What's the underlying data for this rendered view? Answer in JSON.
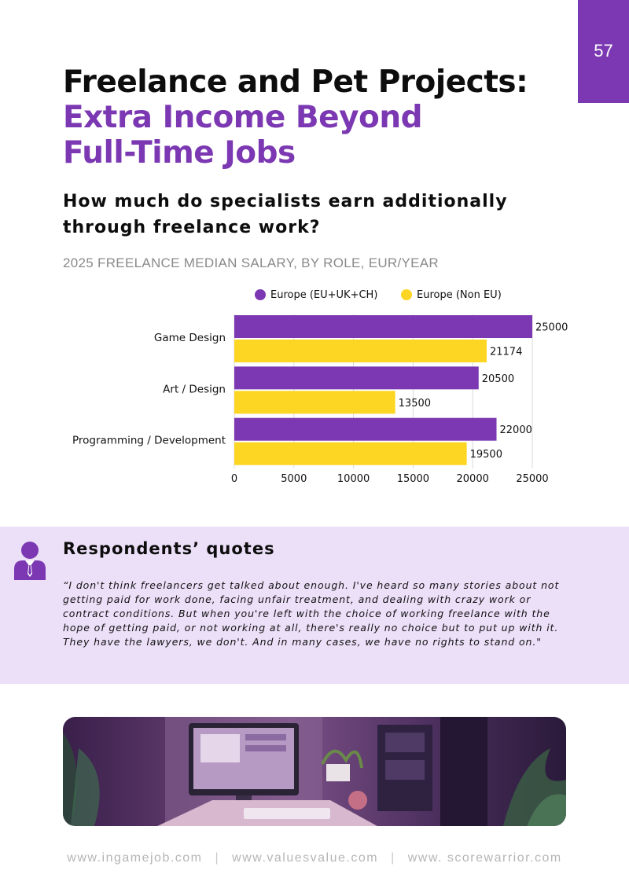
{
  "page_number": "57",
  "title": {
    "line1": "Freelance and Pet Projects:",
    "line2": "Extra Income Beyond",
    "line3": "Full-Time Jobs"
  },
  "subtitle": "How much do specialists earn additionally through freelance work?",
  "chart_caption": "2025 FREELANCE MEDIAN SALARY, BY ROLE, EUR/YEAR",
  "colors": {
    "purple": "#7b38b2",
    "yellow": "#fdd623",
    "quote_band": "#ecdff8"
  },
  "chart_data": {
    "type": "bar",
    "orientation": "horizontal",
    "categories": [
      "Game Design",
      "Art / Design",
      "Programming / Development"
    ],
    "series": [
      {
        "name": "Europe (EU+UK+CH)",
        "color": "#7b38b2",
        "values": [
          25000,
          20500,
          22000
        ]
      },
      {
        "name": "Europe (Non EU)",
        "color": "#fdd623",
        "values": [
          21174,
          13500,
          19500
        ]
      }
    ],
    "xlim": [
      0,
      25000
    ],
    "xticks": [
      "0",
      "5000",
      "10000",
      "15000",
      "20000",
      "25000"
    ],
    "grid": true,
    "legend": "top",
    "data_labels": true
  },
  "quote": {
    "heading": "Respondents’ quotes",
    "icon": "person-tie-icon",
    "text": "“I don't think freelancers get talked about enough. I've heard so many stories about not getting paid for work done, facing unfair treatment, and dealing with crazy work or contract conditions. But when you're left with the choice of working freelance with the hope of getting paid, or not working at all, there's really no choice but to put up with it. They have the lawyers, we don't. And in many cases, we have no rights to stand on.\""
  },
  "footer": {
    "link1": "www.ingamejob.com",
    "link2": "www.valuesvalue.com",
    "link3": "www. scorewarrior.com",
    "separator": "|"
  }
}
